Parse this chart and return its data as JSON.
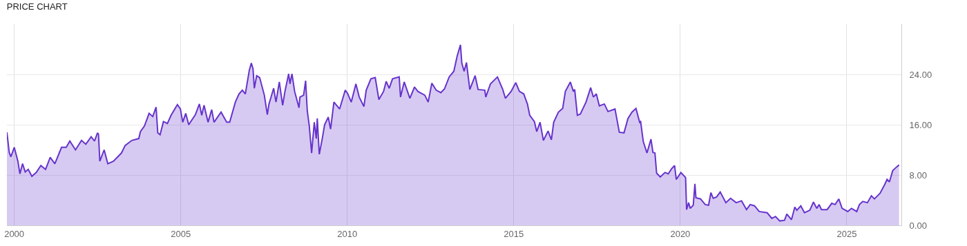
{
  "chart_data": {
    "type": "area",
    "title": "PRICE CHART",
    "x": [
      1999.78,
      1999.85,
      1999.9,
      2000.0,
      2000.11,
      2000.17,
      2000.25,
      2000.33,
      2000.42,
      2000.53,
      2000.66,
      2000.8,
      2000.94,
      2001.08,
      2001.22,
      2001.42,
      2001.56,
      2001.67,
      2001.84,
      2002.02,
      2002.15,
      2002.31,
      2002.41,
      2002.5,
      2002.53,
      2002.57,
      2002.7,
      2002.81,
      2002.98,
      2003.22,
      2003.33,
      2003.53,
      2003.74,
      2003.79,
      2003.91,
      2004.05,
      2004.16,
      2004.26,
      2004.31,
      2004.38,
      2004.48,
      2004.6,
      2004.71,
      2004.9,
      2004.99,
      2005.06,
      2005.15,
      2005.24,
      2005.44,
      2005.56,
      2005.63,
      2005.7,
      2005.82,
      2005.93,
      2006.0,
      2006.21,
      2006.38,
      2006.47,
      2006.64,
      2006.75,
      2006.85,
      2006.94,
      2007.06,
      2007.12,
      2007.17,
      2007.21,
      2007.28,
      2007.37,
      2007.51,
      2007.6,
      2007.65,
      2007.79,
      2007.86,
      2007.96,
      2008.06,
      2008.13,
      2008.24,
      2008.28,
      2008.34,
      2008.42,
      2008.55,
      2008.58,
      2008.69,
      2008.75,
      2008.8,
      2008.86,
      2008.93,
      2009.01,
      2009.07,
      2009.1,
      2009.16,
      2009.25,
      2009.32,
      2009.43,
      2009.5,
      2009.6,
      2009.77,
      2009.94,
      2010.01,
      2010.12,
      2010.26,
      2010.36,
      2010.5,
      2010.57,
      2010.71,
      2010.84,
      2010.95,
      2011.09,
      2011.17,
      2011.26,
      2011.36,
      2011.56,
      2011.6,
      2011.71,
      2011.88,
      2012.02,
      2012.12,
      2012.33,
      2012.43,
      2012.54,
      2012.67,
      2012.81,
      2012.92,
      2013.06,
      2013.2,
      2013.3,
      2013.4,
      2013.44,
      2013.51,
      2013.58,
      2013.68,
      2013.84,
      2013.93,
      2014.13,
      2014.16,
      2014.3,
      2014.51,
      2014.67,
      2014.75,
      2014.92,
      2015.06,
      2015.17,
      2015.3,
      2015.41,
      2015.48,
      2015.62,
      2015.69,
      2015.79,
      2015.89,
      2016.03,
      2016.13,
      2016.2,
      2016.34,
      2016.47,
      2016.55,
      2016.7,
      2016.79,
      2016.83,
      2016.91,
      2017.0,
      2017.17,
      2017.31,
      2017.39,
      2017.48,
      2017.57,
      2017.72,
      2017.83,
      2018.04,
      2018.17,
      2018.31,
      2018.43,
      2018.55,
      2018.67,
      2018.78,
      2018.81,
      2018.89,
      2019.0,
      2019.12,
      2019.18,
      2019.24,
      2019.29,
      2019.4,
      2019.54,
      2019.64,
      2019.74,
      2019.83,
      2019.88,
      2020.02,
      2020.16,
      2020.19,
      2020.25,
      2020.3,
      2020.39,
      2020.44,
      2020.47,
      2020.61,
      2020.75,
      2020.85,
      2020.92,
      2020.99,
      2021.09,
      2021.2,
      2021.37,
      2021.51,
      2021.68,
      2021.84,
      2021.99,
      2022.1,
      2022.23,
      2022.37,
      2022.61,
      2022.75,
      2022.86,
      2022.99,
      2023.13,
      2023.2,
      2023.34,
      2023.44,
      2023.5,
      2023.62,
      2023.73,
      2023.89,
      2024.0,
      2024.1,
      2024.17,
      2024.24,
      2024.41,
      2024.55,
      2024.65,
      2024.76,
      2024.86,
      2025.03,
      2025.14,
      2025.3,
      2025.38,
      2025.48,
      2025.62,
      2025.74,
      2025.83,
      2026.0,
      2026.14,
      2026.21,
      2026.28,
      2026.38,
      2026.5,
      2026.57
    ],
    "series": [
      {
        "color": "#6633cc",
        "values": [
          14.8,
          11.6,
          10.9,
          12.4,
          10.2,
          8.2,
          9.8,
          8.5,
          8.9,
          7.8,
          8.4,
          9.5,
          8.9,
          10.8,
          9.8,
          12.4,
          12.4,
          13.4,
          12.0,
          13.5,
          12.9,
          14.1,
          13.4,
          14.7,
          14.5,
          10.2,
          12.0,
          9.8,
          10.2,
          11.5,
          12.7,
          13.5,
          13.8,
          14.9,
          15.8,
          17.8,
          17.3,
          18.8,
          14.7,
          14.4,
          16.5,
          16.2,
          17.5,
          19.2,
          18.5,
          16.4,
          17.8,
          16.0,
          17.6,
          19.3,
          17.5,
          19.1,
          16.4,
          18.4,
          16.4,
          18.0,
          16.4,
          16.4,
          19.6,
          20.9,
          21.5,
          20.9,
          24.7,
          25.8,
          24.9,
          21.8,
          23.8,
          23.5,
          20.7,
          17.6,
          19.3,
          21.8,
          19.6,
          22.8,
          19.1,
          21.3,
          24.1,
          22.5,
          24.1,
          21.3,
          18.7,
          20.4,
          20.7,
          23.0,
          18.2,
          15.8,
          11.5,
          16.4,
          13.8,
          17.0,
          11.3,
          13.8,
          16.0,
          17.2,
          15.3,
          19.6,
          18.5,
          21.5,
          21.0,
          19.6,
          22.5,
          20.4,
          18.9,
          21.5,
          23.3,
          23.5,
          20.0,
          21.3,
          22.9,
          21.8,
          23.3,
          23.6,
          20.4,
          22.8,
          20.2,
          22.0,
          21.3,
          20.7,
          19.6,
          22.6,
          21.5,
          21.1,
          21.7,
          23.6,
          24.5,
          26.9,
          28.7,
          25.8,
          24.5,
          25.9,
          21.6,
          23.8,
          21.6,
          21.5,
          20.4,
          22.5,
          23.6,
          21.6,
          20.2,
          21.3,
          22.7,
          21.3,
          20.9,
          19.3,
          17.5,
          16.5,
          14.9,
          16.4,
          13.5,
          15.0,
          13.6,
          16.4,
          18.0,
          18.6,
          21.3,
          22.8,
          21.3,
          21.6,
          17.5,
          17.7,
          19.6,
          21.9,
          20.4,
          20.9,
          19.0,
          19.3,
          18.1,
          18.5,
          14.8,
          14.7,
          17.0,
          18.0,
          18.6,
          16.4,
          16.5,
          13.3,
          11.5,
          13.7,
          11.6,
          11.5,
          8.3,
          7.7,
          8.4,
          8.2,
          9.0,
          9.5,
          7.3,
          8.4,
          7.6,
          2.5,
          3.6,
          2.7,
          3.2,
          6.6,
          4.4,
          4.2,
          3.3,
          3.2,
          5.2,
          4.3,
          4.5,
          5.3,
          3.6,
          4.3,
          3.6,
          3.9,
          2.5,
          3.3,
          3.1,
          2.2,
          2.0,
          1.1,
          1.4,
          0.7,
          0.8,
          1.8,
          0.9,
          2.9,
          2.4,
          3.1,
          2.0,
          2.4,
          3.7,
          2.7,
          3.3,
          2.5,
          2.5,
          3.5,
          3.3,
          4.2,
          2.7,
          2.2,
          2.7,
          2.2,
          3.3,
          3.8,
          3.6,
          4.7,
          4.2,
          5.1,
          6.5,
          7.3,
          6.9,
          8.7,
          9.3,
          9.6
        ]
      }
    ],
    "xlim": [
      1999.78,
      2026.64
    ],
    "xticks": [
      2000,
      2005,
      2010,
      2015,
      2020,
      2025
    ],
    "ylim": [
      0,
      32
    ],
    "yticks": [
      {
        "value": 0,
        "label": "0.00"
      },
      {
        "value": 8,
        "label": "8.00"
      },
      {
        "value": 16,
        "label": "16.00"
      },
      {
        "value": 24,
        "label": "24.00"
      }
    ],
    "grid": true
  }
}
